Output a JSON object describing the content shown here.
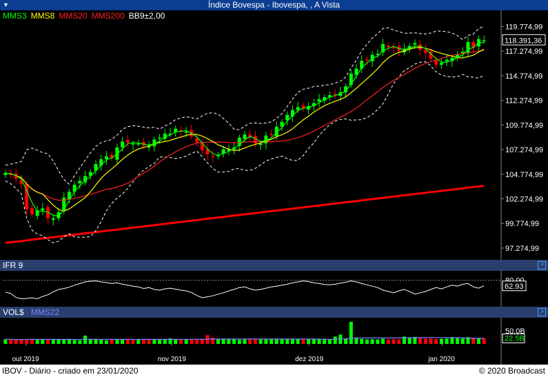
{
  "window": {
    "title": "Índice Bovespa - Ibovespa, , A Vista"
  },
  "legend": [
    {
      "label": "MMS3",
      "color": "#00ff00"
    },
    {
      "label": "MMS8",
      "color": "#ffff00"
    },
    {
      "label": "MMS20",
      "color": "#ff2020"
    },
    {
      "label": "MMS200",
      "color": "#ff2020"
    },
    {
      "label": "BB9±2,00",
      "color": "#ffffff"
    }
  ],
  "price_axis": {
    "ticks": [
      "119.774,99",
      "117.274,99",
      "114.774,99",
      "112.274,99",
      "109.774,99",
      "107.274,99",
      "104.774,99",
      "102.274,99",
      "99.774,99",
      "97.274,99"
    ],
    "last_value": "118.391,36"
  },
  "rsi_panel": {
    "label": "IFR 9",
    "ticks": [
      "80.00"
    ],
    "last_value": "62.93"
  },
  "volume_panel": {
    "label": "VOL$",
    "ma_label": "MMS22",
    "ma_color": "#8080ff",
    "ticks": [
      "50.0B"
    ],
    "last_value": "22.5B"
  },
  "x_axis": {
    "labels": [
      "out 2019",
      "nov 2019",
      "dez 2019",
      "jan 2020"
    ]
  },
  "footer": {
    "left": "IBOV - Diário - criado em 23/01/2020",
    "right": "© 2020 Broadcast"
  },
  "colors": {
    "up": "#00ff00",
    "down": "#ff0000",
    "bands": "#ffffff",
    "mms200": "#ff0000"
  },
  "chart_data": {
    "type": "candlestick",
    "title": "Índice Bovespa - Ibovespa, , A Vista",
    "ylim": [
      96500,
      121000
    ],
    "close": [
      104900,
      104700,
      104300,
      103800,
      101200,
      100700,
      101100,
      101300,
      100300,
      100300,
      100900,
      102400,
      103000,
      103700,
      104100,
      104600,
      105000,
      105800,
      106300,
      106600,
      106400,
      107500,
      108100,
      108000,
      107900,
      107900,
      107700,
      107600,
      108300,
      108500,
      108900,
      108900,
      109400,
      109100,
      109100,
      108600,
      108000,
      107200,
      106800,
      106600,
      106700,
      107300,
      107300,
      107500,
      108500,
      108800,
      108500,
      107900,
      107900,
      108700,
      108800,
      109600,
      110100,
      110800,
      111300,
      111600,
      111500,
      111700,
      112000,
      112400,
      112600,
      112800,
      112900,
      113100,
      113700,
      115000,
      115500,
      116300,
      116400,
      116900,
      117000,
      118000,
      117700,
      117600,
      117300,
      117500,
      117800,
      118100,
      117400,
      117100,
      116500,
      115900,
      116100,
      116400,
      116600,
      116900,
      117200,
      118200,
      117600,
      118500,
      118391
    ],
    "rsi": [
      44,
      40,
      28,
      24,
      25,
      27,
      24,
      31,
      36,
      45,
      52,
      55,
      59,
      65,
      70,
      75,
      77,
      78,
      75,
      73,
      70,
      72,
      68,
      65,
      62,
      60,
      55,
      58,
      52,
      50,
      54,
      56,
      53,
      50,
      48,
      43,
      34,
      27,
      30,
      33,
      38,
      42,
      48,
      52,
      58,
      60,
      54,
      50,
      52,
      56,
      60,
      62,
      65,
      68,
      72,
      75,
      78,
      76,
      72,
      70,
      67,
      66,
      68,
      71,
      74,
      78,
      75,
      70,
      66,
      62,
      58,
      50,
      46,
      42,
      48,
      52,
      46,
      38,
      42,
      46,
      52,
      58,
      54,
      60,
      65,
      62,
      68,
      70,
      60,
      56,
      62.93
    ],
    "volume_b": [
      18,
      17,
      16,
      17,
      18,
      20,
      17,
      16,
      18,
      17,
      17,
      16,
      19,
      15,
      14,
      32,
      17,
      19,
      16,
      14,
      16,
      18,
      18,
      16,
      18,
      17,
      17,
      16,
      18,
      17,
      19,
      21,
      17,
      18,
      18,
      17,
      18,
      20,
      34,
      24,
      17,
      18,
      19,
      18,
      16,
      17,
      18,
      17,
      17,
      17,
      18,
      19,
      17,
      18,
      17,
      18,
      19,
      17,
      17,
      18,
      20,
      18,
      28,
      36,
      21,
      85,
      24,
      19,
      17,
      18,
      17,
      20,
      17,
      18,
      17,
      28,
      24,
      27,
      22,
      20,
      21,
      19,
      20,
      21,
      26,
      22,
      21,
      26,
      24,
      23,
      22.5
    ],
    "mms200_start": 97800,
    "mms200_end": 103600
  }
}
